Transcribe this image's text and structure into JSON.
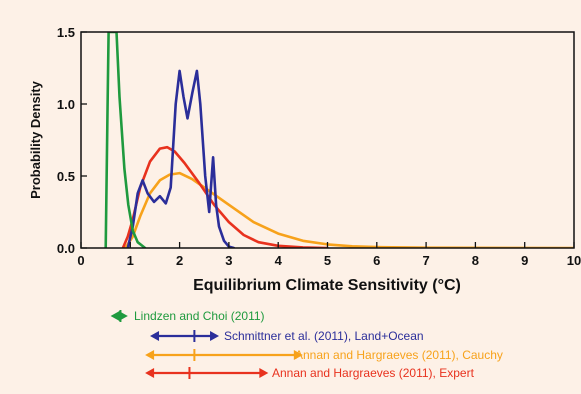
{
  "colors": {
    "background": "#fdf1e7",
    "lindzen": "#1f9a3e",
    "schmittner": "#2b2e9a",
    "cauchy": "#f7a21b",
    "expert": "#e8321e"
  },
  "chart_data": {
    "type": "line",
    "xlabel": "Equilibrium Climate Sensitivity (°C)",
    "ylabel": "Probability Density",
    "xlim": [
      0,
      10
    ],
    "ylim": [
      0,
      1.5
    ],
    "xticks": [
      "0",
      "1",
      "2",
      "3",
      "4",
      "5",
      "6",
      "7",
      "8",
      "9",
      "10"
    ],
    "yticks": [
      "0.0",
      "0.5",
      "1.0",
      "1.5"
    ],
    "grid": false,
    "series": [
      {
        "name": "Lindzen and Choi (2011)",
        "color": "#1f9a3e",
        "points": [
          [
            0.5,
            0
          ],
          [
            0.54,
            1.0
          ],
          [
            0.56,
            1.5
          ],
          [
            0.72,
            1.5
          ],
          [
            0.78,
            1.05
          ],
          [
            0.88,
            0.55
          ],
          [
            0.96,
            0.3
          ],
          [
            1.05,
            0.12
          ],
          [
            1.15,
            0.04
          ],
          [
            1.3,
            0
          ]
        ]
      },
      {
        "name": "Schmittner et al. (2011), Land+Ocean",
        "color": "#2b2e9a",
        "points": [
          [
            0.95,
            0
          ],
          [
            1.05,
            0.15
          ],
          [
            1.15,
            0.38
          ],
          [
            1.25,
            0.47
          ],
          [
            1.35,
            0.38
          ],
          [
            1.48,
            0.32
          ],
          [
            1.6,
            0.36
          ],
          [
            1.72,
            0.31
          ],
          [
            1.82,
            0.42
          ],
          [
            1.92,
            1.0
          ],
          [
            2.0,
            1.23
          ],
          [
            2.08,
            1.05
          ],
          [
            2.16,
            0.9
          ],
          [
            2.26,
            1.08
          ],
          [
            2.35,
            1.23
          ],
          [
            2.42,
            1.0
          ],
          [
            2.52,
            0.5
          ],
          [
            2.6,
            0.25
          ],
          [
            2.68,
            0.63
          ],
          [
            2.74,
            0.3
          ],
          [
            2.8,
            0.15
          ],
          [
            2.9,
            0.05
          ],
          [
            3.0,
            0.01
          ],
          [
            3.1,
            0
          ]
        ]
      },
      {
        "name": "Annan and Hargraeves (2011), Cauchy",
        "color": "#f7a21b",
        "points": [
          [
            0.9,
            0
          ],
          [
            1.05,
            0.08
          ],
          [
            1.2,
            0.22
          ],
          [
            1.4,
            0.38
          ],
          [
            1.6,
            0.47
          ],
          [
            1.8,
            0.51
          ],
          [
            2.0,
            0.52
          ],
          [
            2.25,
            0.48
          ],
          [
            2.5,
            0.42
          ],
          [
            3.0,
            0.3
          ],
          [
            3.5,
            0.18
          ],
          [
            4.0,
            0.1
          ],
          [
            4.5,
            0.05
          ],
          [
            5.0,
            0.025
          ],
          [
            5.5,
            0.012
          ],
          [
            6.0,
            0.006
          ],
          [
            7.0,
            0.002
          ],
          [
            10,
            0
          ]
        ]
      },
      {
        "name": "Annan and Hargraeves (2011), Expert",
        "color": "#e8321e",
        "points": [
          [
            0.85,
            0
          ],
          [
            0.95,
            0.08
          ],
          [
            1.05,
            0.2
          ],
          [
            1.2,
            0.42
          ],
          [
            1.4,
            0.6
          ],
          [
            1.6,
            0.69
          ],
          [
            1.75,
            0.7
          ],
          [
            1.9,
            0.67
          ],
          [
            2.1,
            0.59
          ],
          [
            2.4,
            0.45
          ],
          [
            2.7,
            0.3
          ],
          [
            3.0,
            0.18
          ],
          [
            3.3,
            0.09
          ],
          [
            3.6,
            0.04
          ],
          [
            4.0,
            0.015
          ],
          [
            4.5,
            0.004
          ],
          [
            5.0,
            0
          ]
        ]
      }
    ],
    "ranges": [
      {
        "name": "Lindzen and Choi (2011)",
        "from": 0.6,
        "to": 0.95,
        "center": 0.8,
        "color": "#1f9a3e"
      },
      {
        "name": "Schmittner et al. (2011), Land+Ocean",
        "from": 1.4,
        "to": 2.8,
        "center": 2.3,
        "color": "#2b2e9a"
      },
      {
        "name": "Annan and Hargraeves (2011), Cauchy",
        "from": 1.3,
        "to": 4.5,
        "center": 2.3,
        "color": "#f7a21b"
      },
      {
        "name": "Annan and Hargraeves (2011), Expert",
        "from": 1.3,
        "to": 3.8,
        "center": 2.2,
        "color": "#e8321e"
      }
    ]
  },
  "legend": [
    {
      "label": "Lindzen and Choi  (2011)",
      "color": "#1f9a3e"
    },
    {
      "label": "Schmittner et al.  (2011), Land+Ocean",
      "color": "#2b2e9a"
    },
    {
      "label": "Annan and Hargraeves (2011), Cauchy",
      "color": "#f7a21b"
    },
    {
      "label": "Annan and Hargraeves (2011), Expert",
      "color": "#e8321e"
    }
  ]
}
